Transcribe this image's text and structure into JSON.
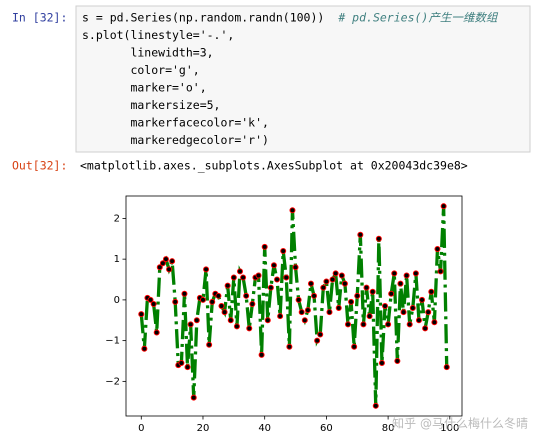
{
  "input_prompt": "In [32]:",
  "code": {
    "lines": [
      "s = pd.Series(np.random.randn(100))",
      "s.plot(linestyle='-.',",
      "       linewidth=3,",
      "       color='g',",
      "       marker='o',",
      "       markersize=5,",
      "       markerfacecolor='k',",
      "       markeredgecolor='r')"
    ],
    "comment": "# pd.Series()产生一维数组"
  },
  "output_prompt": "Out[32]:",
  "output_text": "<matplotlib.axes._subplots.AxesSubplot at 0x20043dc39e8>",
  "watermark": "知乎 @马什么梅什么冬晴",
  "chart_data": {
    "type": "line",
    "x": [
      0,
      1,
      2,
      3,
      4,
      5,
      6,
      7,
      8,
      9,
      10,
      11,
      12,
      13,
      14,
      15,
      16,
      17,
      18,
      19,
      20,
      21,
      22,
      23,
      24,
      25,
      26,
      27,
      28,
      29,
      30,
      31,
      32,
      33,
      34,
      35,
      36,
      37,
      38,
      39,
      40,
      41,
      42,
      43,
      44,
      45,
      46,
      47,
      48,
      49,
      50,
      51,
      52,
      53,
      54,
      55,
      56,
      57,
      58,
      59,
      60,
      61,
      62,
      63,
      64,
      65,
      66,
      67,
      68,
      69,
      70,
      71,
      72,
      73,
      74,
      75,
      76,
      77,
      78,
      79,
      80,
      81,
      82,
      83,
      84,
      85,
      86,
      87,
      88,
      89,
      90,
      91,
      92,
      93,
      94,
      95,
      96,
      97,
      98,
      99
    ],
    "values": [
      -0.35,
      -1.2,
      0.05,
      0.0,
      -0.1,
      -0.8,
      0.8,
      0.9,
      1.0,
      0.75,
      0.95,
      -0.05,
      -1.6,
      -1.55,
      0.15,
      -1.65,
      -0.6,
      -2.4,
      -0.5,
      0.05,
      0.0,
      0.75,
      -1.1,
      -0.05,
      0.15,
      0.1,
      -0.15,
      -0.3,
      0.35,
      -0.5,
      0.55,
      -0.65,
      0.7,
      0.55,
      0.1,
      -0.7,
      -0.1,
      0.55,
      0.6,
      -1.35,
      1.3,
      -0.5,
      0.3,
      0.85,
      0.5,
      -0.4,
      1.2,
      0.55,
      -1.15,
      2.2,
      0.8,
      0.0,
      -0.3,
      -0.5,
      -0.25,
      0.4,
      0.1,
      -1.0,
      -0.85,
      0.3,
      0.45,
      -0.3,
      0.5,
      0.65,
      -0.2,
      0.6,
      0.4,
      -0.6,
      -0.05,
      -1.15,
      0.1,
      1.6,
      -0.6,
      0.3,
      -0.4,
      0.2,
      -2.6,
      1.5,
      -1.55,
      -0.15,
      -0.6,
      0.15,
      0.65,
      -1.5,
      0.4,
      -0.3,
      0.6,
      -0.6,
      -0.2,
      0.65,
      -0.5,
      0.0,
      -0.7,
      -0.3,
      0.2,
      -0.55,
      1.25,
      0.7,
      2.3,
      -1.65
    ],
    "color": "#008000",
    "marker_face_color": "#000000",
    "marker_edge_color": "#ff0000",
    "linestyle": "-.",
    "linewidth": 3,
    "markersize": 5,
    "xlim": [
      -4.95,
      103.95
    ],
    "ylim": [
      -2.85,
      2.55
    ],
    "xticks": [
      0,
      20,
      40,
      60,
      80,
      100
    ],
    "yticks": [
      {
        "value": -2,
        "label": "−2"
      },
      {
        "value": -1,
        "label": "−1"
      },
      0,
      1,
      2
    ]
  }
}
